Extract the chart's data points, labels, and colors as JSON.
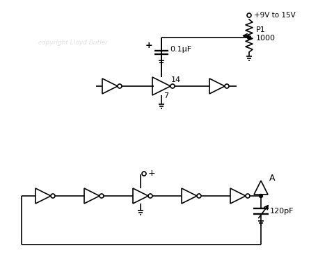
{
  "bg_color": "#ffffff",
  "line_color": "#000000",
  "text_color": "#000000",
  "watermark": "copyright Lloyd Butler",
  "watermark_color": "#cccccc",
  "labels": {
    "vcc": "+9V to 15V",
    "p1": "P1",
    "p1_val": "1000",
    "cap1": "0.1μF",
    "cap1_plus": "+",
    "pin14": "14",
    "pin7": "7",
    "cap2": "120pF",
    "antenna": "A",
    "plus2": "+"
  }
}
